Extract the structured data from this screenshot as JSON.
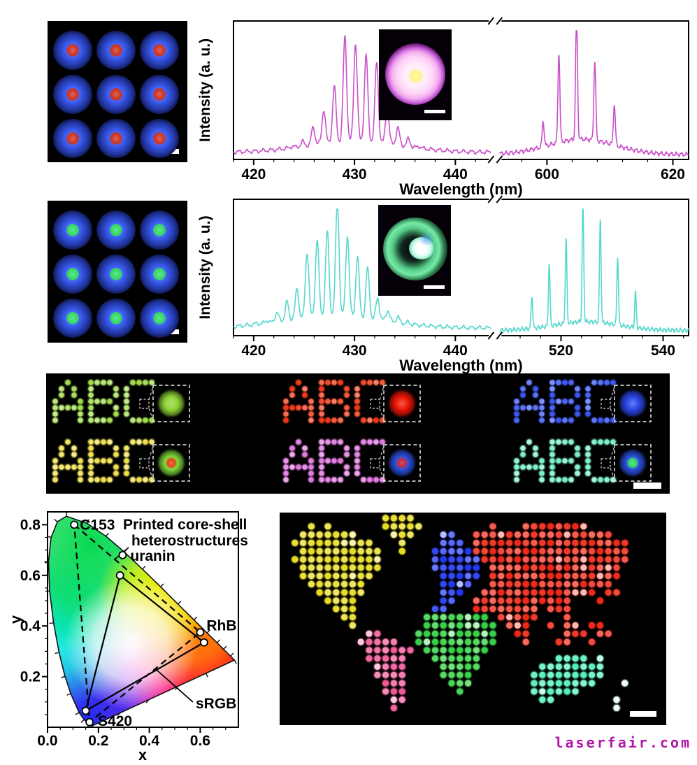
{
  "watermark": {
    "text": "laserfair.com",
    "color": "#b018a8"
  },
  "micro_arrays": [
    {
      "name": "printed core-shell microdisc array, blue shell / red core",
      "rows": 3,
      "cols": 3,
      "shell_color": "#3a5cf0",
      "core_color": "#cc3322",
      "background": "#000000",
      "scale_bar": true
    },
    {
      "name": "printed core-shell microdisc array, blue shell / green core",
      "rows": 3,
      "cols": 3,
      "shell_color": "#3a5cf0",
      "core_color": "#35d964",
      "background": "#000000",
      "scale_bar": true
    }
  ],
  "chart_data": [
    {
      "id": "spectrum_red_emission",
      "type": "line",
      "xlabel": "Wavelength (nm)",
      "ylabel": "Intensity (a. u.)",
      "line_color": "#c94fc9",
      "axis_break": true,
      "inset_note": "pink-white glowing core-shell microsphere with yellow core and scale bar",
      "segments": [
        {
          "xlim": [
            418,
            443.5
          ],
          "major_ticks": [
            420,
            430,
            440
          ],
          "minor_tick_step": 2,
          "comb": {
            "first": 419.6,
            "spacing": 1.05,
            "count": 20,
            "envelope_center": 430.2,
            "envelope_sigma": 3.1,
            "max_height": 0.95
          },
          "pedestal": {
            "center": 430,
            "sigma": 6.5,
            "height": 0.09
          },
          "peak_sigma": 0.24,
          "baseline": 0.045
        },
        {
          "xlim": [
            592.5,
            622.5
          ],
          "major_ticks": [
            600,
            620
          ],
          "minor_tick_step": 4,
          "modes": [
            [
              599.4,
              0.2
            ],
            [
              601.9,
              0.7
            ],
            [
              604.7,
              0.97
            ],
            [
              607.6,
              0.62
            ],
            [
              610.7,
              0.32
            ]
          ],
          "pedestal": {
            "center": 605.5,
            "sigma": 7.5,
            "height": 0.12
          },
          "peak_sigma": 0.22,
          "baseline": 0.028
        }
      ]
    },
    {
      "id": "spectrum_green_emission",
      "type": "line",
      "xlabel": "Wavelength (nm)",
      "ylabel": "Intensity (a. u.)",
      "line_color": "#56d8cc",
      "axis_break": true,
      "inset_note": "green glowing core-shell microsphere with bright white core and scale bar",
      "segments": [
        {
          "xlim": [
            418,
            443.5
          ],
          "major_ticks": [
            420,
            430,
            440
          ],
          "minor_tick_step": 2,
          "comb": {
            "first": 419.3,
            "spacing": 1.0,
            "count": 23,
            "envelope_center": 428.0,
            "envelope_sigma": 3.6,
            "max_height": 0.92
          },
          "pedestal": {
            "center": 428,
            "sigma": 7,
            "height": 0.1
          },
          "peak_sigma": 0.24,
          "baseline": 0.05
        },
        {
          "xlim": [
            508,
            545
          ],
          "major_ticks": [
            520,
            540
          ],
          "minor_tick_step": 4,
          "modes": [
            [
              514.3,
              0.26
            ],
            [
              517.7,
              0.5
            ],
            [
              521.0,
              0.68
            ],
            [
              524.3,
              0.97
            ],
            [
              527.7,
              0.82
            ],
            [
              531.1,
              0.55
            ],
            [
              534.6,
              0.28
            ]
          ],
          "pedestal": {
            "center": 525,
            "sigma": 9,
            "height": 0.07
          },
          "peak_sigma": 0.22,
          "baseline": 0.03
        }
      ]
    },
    {
      "id": "cie_1931_chromaticity",
      "type": "scatter",
      "xlabel": "x",
      "ylabel": "y",
      "xlim": [
        0,
        0.75
      ],
      "ylim": [
        0,
        0.85
      ],
      "x_ticks": [
        0.0,
        0.2,
        0.4,
        0.6
      ],
      "y_ticks": [
        0.2,
        0.4,
        0.6,
        0.8
      ],
      "minor_tick_step": 0.05,
      "annotations": {
        "gamut_label_lines": [
          "Printed core-shell",
          "heterostructures"
        ],
        "srgb_label": "sRGB"
      },
      "points": [
        {
          "label": "C153",
          "x": 0.105,
          "y": 0.8
        },
        {
          "label": "uranin",
          "x": 0.295,
          "y": 0.68
        },
        {
          "label": "RhB",
          "x": 0.6,
          "y": 0.375
        },
        {
          "label": "S420",
          "x": 0.165,
          "y": 0.02
        },
        {
          "label": "",
          "x": 0.285,
          "y": 0.6
        },
        {
          "label": "",
          "x": 0.615,
          "y": 0.335
        },
        {
          "label": "",
          "x": 0.15,
          "y": 0.065
        }
      ],
      "dashed_gamut": [
        [
          0.105,
          0.8
        ],
        [
          0.6,
          0.375
        ],
        [
          0.165,
          0.02
        ]
      ],
      "srgb_gamut": [
        [
          0.285,
          0.6
        ],
        [
          0.615,
          0.335
        ],
        [
          0.15,
          0.065
        ]
      ],
      "locus": [
        [
          0.1741,
          0.005
        ],
        [
          0.1726,
          0.0048
        ],
        [
          0.1644,
          0.0109
        ],
        [
          0.144,
          0.0297
        ],
        [
          0.1241,
          0.0578
        ],
        [
          0.0913,
          0.1327
        ],
        [
          0.0687,
          0.2007
        ],
        [
          0.0454,
          0.295
        ],
        [
          0.0235,
          0.4127
        ],
        [
          0.0082,
          0.5384
        ],
        [
          0.0039,
          0.6548
        ],
        [
          0.0139,
          0.7502
        ],
        [
          0.0389,
          0.812
        ],
        [
          0.0743,
          0.8338
        ],
        [
          0.1547,
          0.8059
        ],
        [
          0.2296,
          0.7543
        ],
        [
          0.3016,
          0.6923
        ],
        [
          0.3731,
          0.6245
        ],
        [
          0.4441,
          0.5547
        ],
        [
          0.5125,
          0.4866
        ],
        [
          0.5752,
          0.4242
        ],
        [
          0.627,
          0.3725
        ],
        [
          0.6658,
          0.334
        ],
        [
          0.6915,
          0.3083
        ],
        [
          0.719,
          0.2809
        ],
        [
          0.7347,
          0.2653
        ]
      ]
    }
  ],
  "abc_panel": {
    "scale_bar": true,
    "rows": [
      [
        {
          "letters": "ABC",
          "color": "#a2dc4e",
          "inset": {
            "shell": "#8fd435",
            "core": null
          }
        },
        {
          "letters": "ABC",
          "color": "#ef3a18",
          "inset": {
            "shell": "#ee1505",
            "core": null
          }
        },
        {
          "letters": "ABC",
          "color": "#3a55f0",
          "inset": {
            "shell": "#2a46e8",
            "core": null
          }
        }
      ],
      [
        {
          "letters": "ABC",
          "color": "#efe04e",
          "inset": {
            "shell": "#7ed83a",
            "core": "#e04818"
          }
        },
        {
          "letters": "ABC",
          "color": "#e07ae0",
          "inset": {
            "shell": "#2a50e0",
            "core": "#c02840"
          }
        },
        {
          "letters": "ABC",
          "color": "#7af0c4",
          "inset": {
            "shell": "#2a50e0",
            "core": "#38d86a"
          }
        }
      ]
    ]
  },
  "map_panel": {
    "scale_bar": true,
    "continents": [
      {
        "key": "N",
        "name": "north-america",
        "color": "#e8dc22"
      },
      {
        "key": "S",
        "name": "south-america",
        "color": "#f05898"
      },
      {
        "key": "E",
        "name": "europe",
        "color": "#2038f0"
      },
      {
        "key": "A",
        "name": "asia",
        "color": "#f02818"
      },
      {
        "key": "F",
        "name": "africa",
        "color": "#38d048"
      },
      {
        "key": "U",
        "name": "australia",
        "color": "#50f0b8"
      },
      {
        "key": "W",
        "name": "new-zealand",
        "color": "#eefff6"
      }
    ]
  }
}
